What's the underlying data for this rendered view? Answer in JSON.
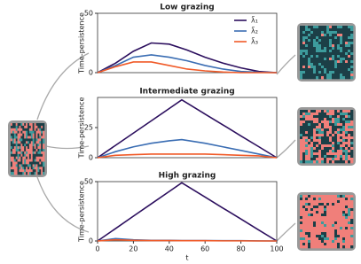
{
  "chart_data": [
    {
      "type": "line",
      "title": "Low grazing",
      "y_label": "Time-persistence",
      "x": [
        0,
        10,
        20,
        30,
        40,
        50,
        60,
        70,
        80,
        90,
        100
      ],
      "xlim": [
        0,
        100
      ],
      "ylim": [
        0,
        50
      ],
      "yticks": [
        0,
        50
      ],
      "legend": "upper right",
      "series": [
        {
          "name": "λ̃₁",
          "color": "#2c0f5e",
          "values": [
            0,
            8,
            18,
            25,
            24,
            19,
            13,
            8,
            4,
            1,
            0
          ]
        },
        {
          "name": "λ̃₂",
          "color": "#3a6db3",
          "values": [
            0,
            6,
            13,
            15,
            13,
            10,
            6,
            3,
            1,
            0.3,
            0
          ]
        },
        {
          "name": "λ̃₃",
          "color": "#f05a28",
          "values": [
            0,
            5,
            9,
            9,
            6,
            3,
            1.5,
            0.5,
            0,
            0,
            0
          ]
        }
      ]
    },
    {
      "type": "line",
      "title": "Intermediate grazing",
      "y_label": "Time-persistence",
      "x": [
        0,
        10,
        20,
        30,
        40,
        47,
        60,
        70,
        80,
        90,
        100
      ],
      "xlim": [
        0,
        100
      ],
      "ylim": [
        0,
        50
      ],
      "yticks": [
        0,
        25
      ],
      "series": [
        {
          "color": "#2c0f5e",
          "values": [
            0,
            10.2,
            20.4,
            30.6,
            40.8,
            48,
            36.2,
            27.2,
            18.1,
            9.1,
            0
          ]
        },
        {
          "color": "#3a6db3",
          "values": [
            0,
            5,
            9,
            12,
            14,
            15,
            12,
            9,
            6,
            3,
            0
          ]
        },
        {
          "color": "#f05a28",
          "values": [
            0,
            2,
            2.5,
            3,
            3,
            3,
            3,
            2.5,
            2,
            1.5,
            0
          ]
        }
      ]
    },
    {
      "type": "line",
      "title": "High grazing",
      "y_label": "Time-persistence",
      "x_label": "t",
      "x": [
        0,
        10,
        20,
        30,
        40,
        47,
        60,
        70,
        80,
        90,
        100
      ],
      "xlim": [
        0,
        100
      ],
      "ylim": [
        0,
        50
      ],
      "yticks": [
        0,
        50
      ],
      "xticks": [
        0,
        20,
        40,
        60,
        80,
        100
      ],
      "series": [
        {
          "color": "#2c0f5e",
          "values": [
            0,
            10.4,
            20.9,
            31.3,
            41.7,
            49,
            37,
            27.7,
            18.5,
            9.2,
            0
          ]
        },
        {
          "color": "#3a6db3",
          "values": [
            0,
            2,
            1,
            0.5,
            0.5,
            0.3,
            0.3,
            0.2,
            0.2,
            0.1,
            0
          ]
        },
        {
          "color": "#f05a28",
          "values": [
            0,
            1,
            0.5,
            0.3,
            0.3,
            0.2,
            0.2,
            0.1,
            0.1,
            0,
            0
          ]
        }
      ]
    }
  ]
}
